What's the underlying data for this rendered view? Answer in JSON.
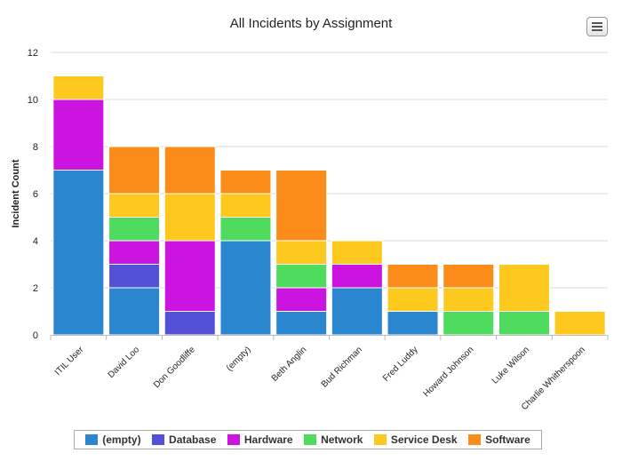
{
  "chart_data": {
    "type": "bar",
    "stacked": true,
    "title": "All Incidents by Assignment",
    "xlabel": "",
    "ylabel": "Incident Count",
    "ylim": [
      0,
      12
    ],
    "yticks": [
      0,
      2,
      4,
      6,
      8,
      10,
      12
    ],
    "grid": true,
    "legend_position": "bottom",
    "categories": [
      "ITIL User",
      "David Loo",
      "Don Goodliffe",
      "(empty)",
      "Beth Anglin",
      "Bud Richman",
      "Fred Luddy",
      "Howard Johnson",
      "Luke Wilson",
      "Charlie Whitherspoon"
    ],
    "series": [
      {
        "name": "(empty)",
        "color": "#2b86d0",
        "values": [
          7,
          2,
          0,
          4,
          1,
          2,
          1,
          0,
          0,
          0
        ]
      },
      {
        "name": "Database",
        "color": "#5450d8",
        "values": [
          0,
          1,
          1,
          0,
          0,
          0,
          0,
          0,
          0,
          0
        ]
      },
      {
        "name": "Hardware",
        "color": "#cc14e0",
        "values": [
          3,
          1,
          3,
          0,
          1,
          1,
          0,
          0,
          0,
          0
        ]
      },
      {
        "name": "Network",
        "color": "#4fdb5d",
        "values": [
          0,
          1,
          0,
          1,
          1,
          0,
          0,
          1,
          1,
          0
        ]
      },
      {
        "name": "Service Desk",
        "color": "#fdc91f",
        "values": [
          1,
          1,
          2,
          1,
          1,
          1,
          1,
          1,
          2,
          1
        ]
      },
      {
        "name": "Software",
        "color": "#fb8c1a",
        "values": [
          0,
          2,
          2,
          1,
          3,
          0,
          1,
          1,
          0,
          0
        ]
      }
    ]
  },
  "menu": {
    "icon": "hamburger-menu-icon"
  }
}
